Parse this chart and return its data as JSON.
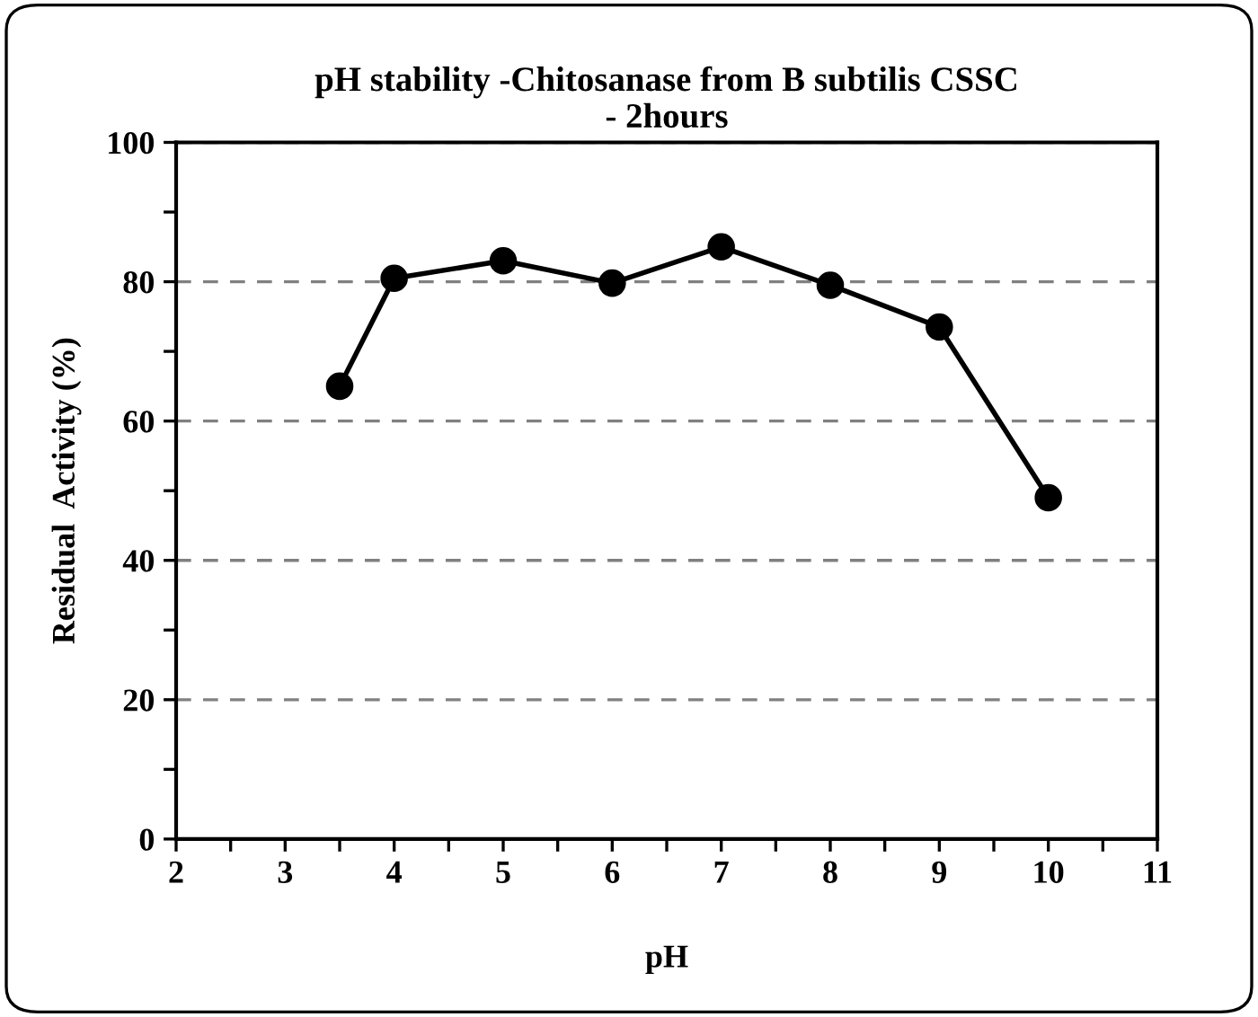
{
  "chart_data": {
    "type": "line",
    "title": "pH stability -Chitosanase from B subtilis CSSC\n- 2hours",
    "xlabel": "pH",
    "ylabel": "Residual  Activity (%)",
    "x": [
      3.5,
      4,
      5,
      6,
      7,
      8,
      9,
      10
    ],
    "series": [
      {
        "color": "#000000",
        "values": [
          65,
          80.5,
          83,
          79.8,
          85,
          79.5,
          73.5,
          49
        ]
      }
    ],
    "xlim": [
      2,
      11
    ],
    "xticks": [
      2,
      {
        "value": 2.5,
        "label": null
      },
      3,
      {
        "value": 3.5,
        "label": null
      },
      4,
      {
        "value": 4.5,
        "label": null
      },
      5,
      {
        "value": 5.5,
        "label": null
      },
      6,
      {
        "value": 6.5,
        "label": null
      },
      7,
      {
        "value": 7.5,
        "label": null
      },
      8,
      {
        "value": 8.5,
        "label": null
      },
      9,
      {
        "value": 9.5,
        "label": null
      },
      10,
      {
        "value": 10.5,
        "label": null
      },
      11
    ],
    "ylim": [
      0,
      100
    ],
    "yticks": [
      0,
      {
        "value": 10,
        "label": null
      },
      20,
      {
        "value": 30,
        "label": null
      },
      40,
      {
        "value": 50,
        "label": null
      },
      60,
      {
        "value": 70,
        "label": null
      },
      80,
      {
        "value": 90,
        "label": null
      },
      100
    ],
    "grid": "y",
    "marker": "circle",
    "line_style": "solid"
  }
}
